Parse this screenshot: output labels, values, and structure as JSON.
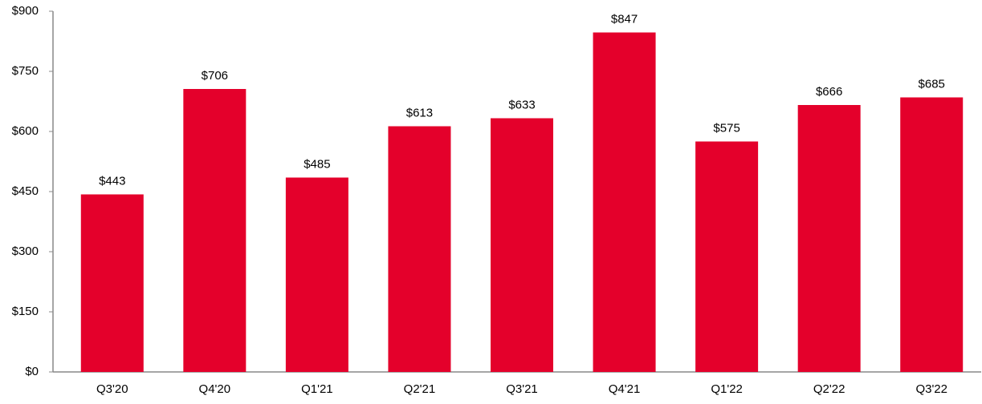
{
  "chart_data": {
    "type": "bar",
    "categories": [
      "Q3'20",
      "Q4'20",
      "Q1'21",
      "Q2'21",
      "Q3'21",
      "Q4'21",
      "Q1'22",
      "Q2'22",
      "Q3'22"
    ],
    "values": [
      443,
      706,
      485,
      613,
      633,
      847,
      575,
      666,
      685
    ],
    "value_labels": [
      "$443",
      "$706",
      "$485",
      "$613",
      "$633",
      "$847",
      "$575",
      "$666",
      "$685"
    ],
    "color": "#e4002b",
    "ylim": [
      0,
      900
    ],
    "yticks": [
      {
        "value": 0,
        "label": "$0"
      },
      {
        "value": 150,
        "label": "$150"
      },
      {
        "value": 300,
        "label": "$300"
      },
      {
        "value": 450,
        "label": "$450"
      },
      {
        "value": 600,
        "label": "$600"
      },
      {
        "value": 750,
        "label": "$750"
      },
      {
        "value": 900,
        "label": "$900"
      }
    ],
    "grid": false
  }
}
